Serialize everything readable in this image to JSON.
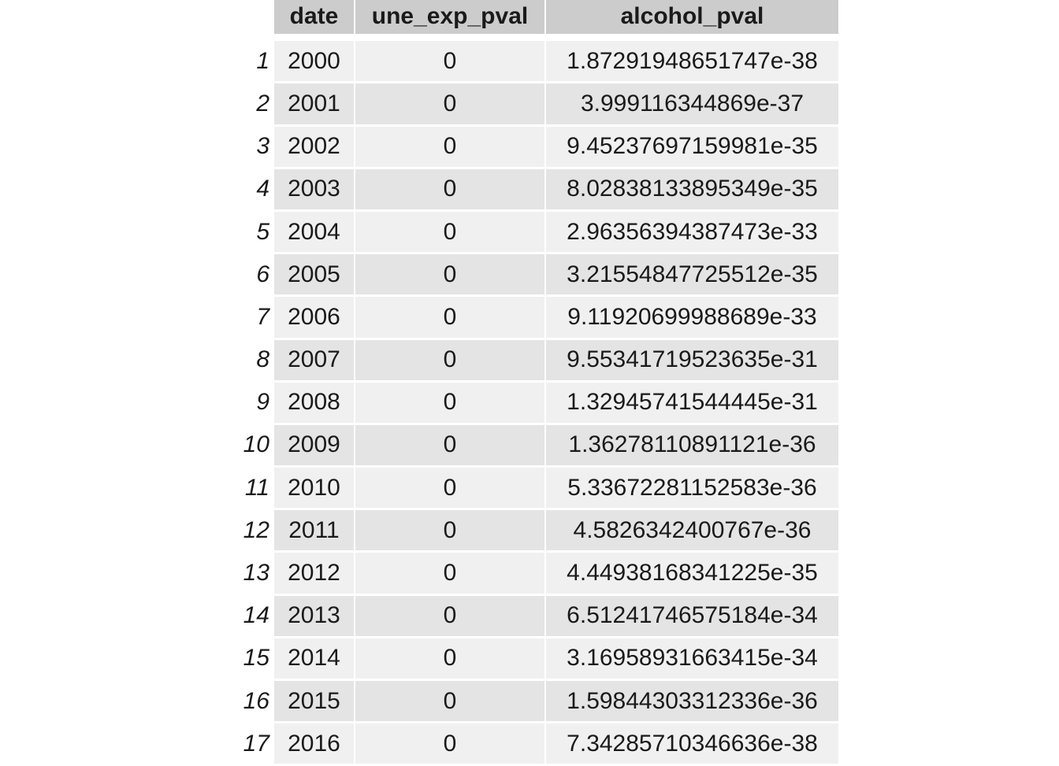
{
  "table": {
    "columns": [
      "",
      "date",
      "une_exp_pval",
      "alcohol_pval"
    ],
    "rows": [
      {
        "n": "1",
        "date": "2000",
        "une": "0",
        "alc": "1.87291948651747e-38"
      },
      {
        "n": "2",
        "date": "2001",
        "une": "0",
        "alc": "3.999116344869e-37"
      },
      {
        "n": "3",
        "date": "2002",
        "une": "0",
        "alc": "9.45237697159981e-35"
      },
      {
        "n": "4",
        "date": "2003",
        "une": "0",
        "alc": "8.02838133895349e-35"
      },
      {
        "n": "5",
        "date": "2004",
        "une": "0",
        "alc": "2.96356394387473e-33"
      },
      {
        "n": "6",
        "date": "2005",
        "une": "0",
        "alc": "3.21554847725512e-35"
      },
      {
        "n": "7",
        "date": "2006",
        "une": "0",
        "alc": "9.11920699988689e-33"
      },
      {
        "n": "8",
        "date": "2007",
        "une": "0",
        "alc": "9.55341719523635e-31"
      },
      {
        "n": "9",
        "date": "2008",
        "une": "0",
        "alc": "1.32945741544445e-31"
      },
      {
        "n": "10",
        "date": "2009",
        "une": "0",
        "alc": "1.36278110891121e-36"
      },
      {
        "n": "11",
        "date": "2010",
        "une": "0",
        "alc": "5.33672281152583e-36"
      },
      {
        "n": "12",
        "date": "2011",
        "une": "0",
        "alc": "4.5826342400767e-36"
      },
      {
        "n": "13",
        "date": "2012",
        "une": "0",
        "alc": "4.44938168341225e-35"
      },
      {
        "n": "14",
        "date": "2013",
        "une": "0",
        "alc": "6.51241746575184e-34"
      },
      {
        "n": "15",
        "date": "2014",
        "une": "0",
        "alc": "3.16958931663415e-34"
      },
      {
        "n": "16",
        "date": "2015",
        "une": "0",
        "alc": "1.59844303312336e-36"
      },
      {
        "n": "17",
        "date": "2016",
        "une": "0",
        "alc": "7.34285710346636e-38"
      }
    ]
  },
  "colors": {
    "header_bg": "#cccccc",
    "row_odd": "#f0f0f0",
    "row_even": "#e4e4e4"
  }
}
